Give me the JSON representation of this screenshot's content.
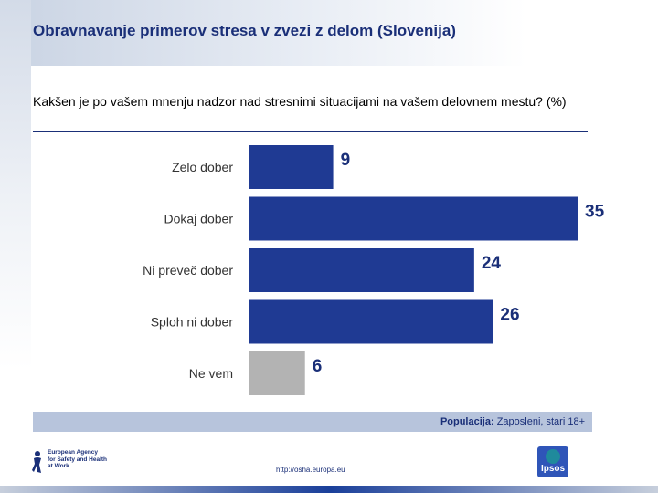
{
  "header": {
    "title": "Obravnavanje primerov stresa v zvezi z delom (Slovenija)"
  },
  "question": "Kakšen je po vašem mnenju nadzor nad stresnimi situacijami na vašem delovnem mestu? (%)",
  "chart_data": {
    "type": "bar",
    "orientation": "horizontal",
    "title": "Kakšen je po vašem mnenju nadzor nad stresnimi situacijami na vašem delovnem mestu? (%)",
    "categories": [
      "Zelo dober",
      "Dokaj dober",
      "Ni preveč dober",
      "Sploh ni dober",
      "Ne vem"
    ],
    "values": [
      9,
      35,
      24,
      26,
      6
    ],
    "value_labels": [
      "9",
      "35",
      "24",
      "26",
      "6"
    ],
    "bar_colors": [
      "#1f3a93",
      "#1f3a93",
      "#1f3a93",
      "#1f3a93",
      "#b3b3b3"
    ],
    "xlabel": "",
    "ylabel": "",
    "xlim": [
      0,
      35
    ]
  },
  "population": {
    "label": "Populacija:",
    "value": "Zaposleni, stari 18+"
  },
  "footer": {
    "logo_text": [
      "European Agency",
      "for Safety and Health",
      "at Work"
    ],
    "url": "http://osha.europa.eu",
    "ipsos_label": "Ipsos"
  },
  "colors": {
    "brand": "#1a2f78",
    "bar": "#1f3a93",
    "neutral_bar": "#b3b3b3"
  }
}
